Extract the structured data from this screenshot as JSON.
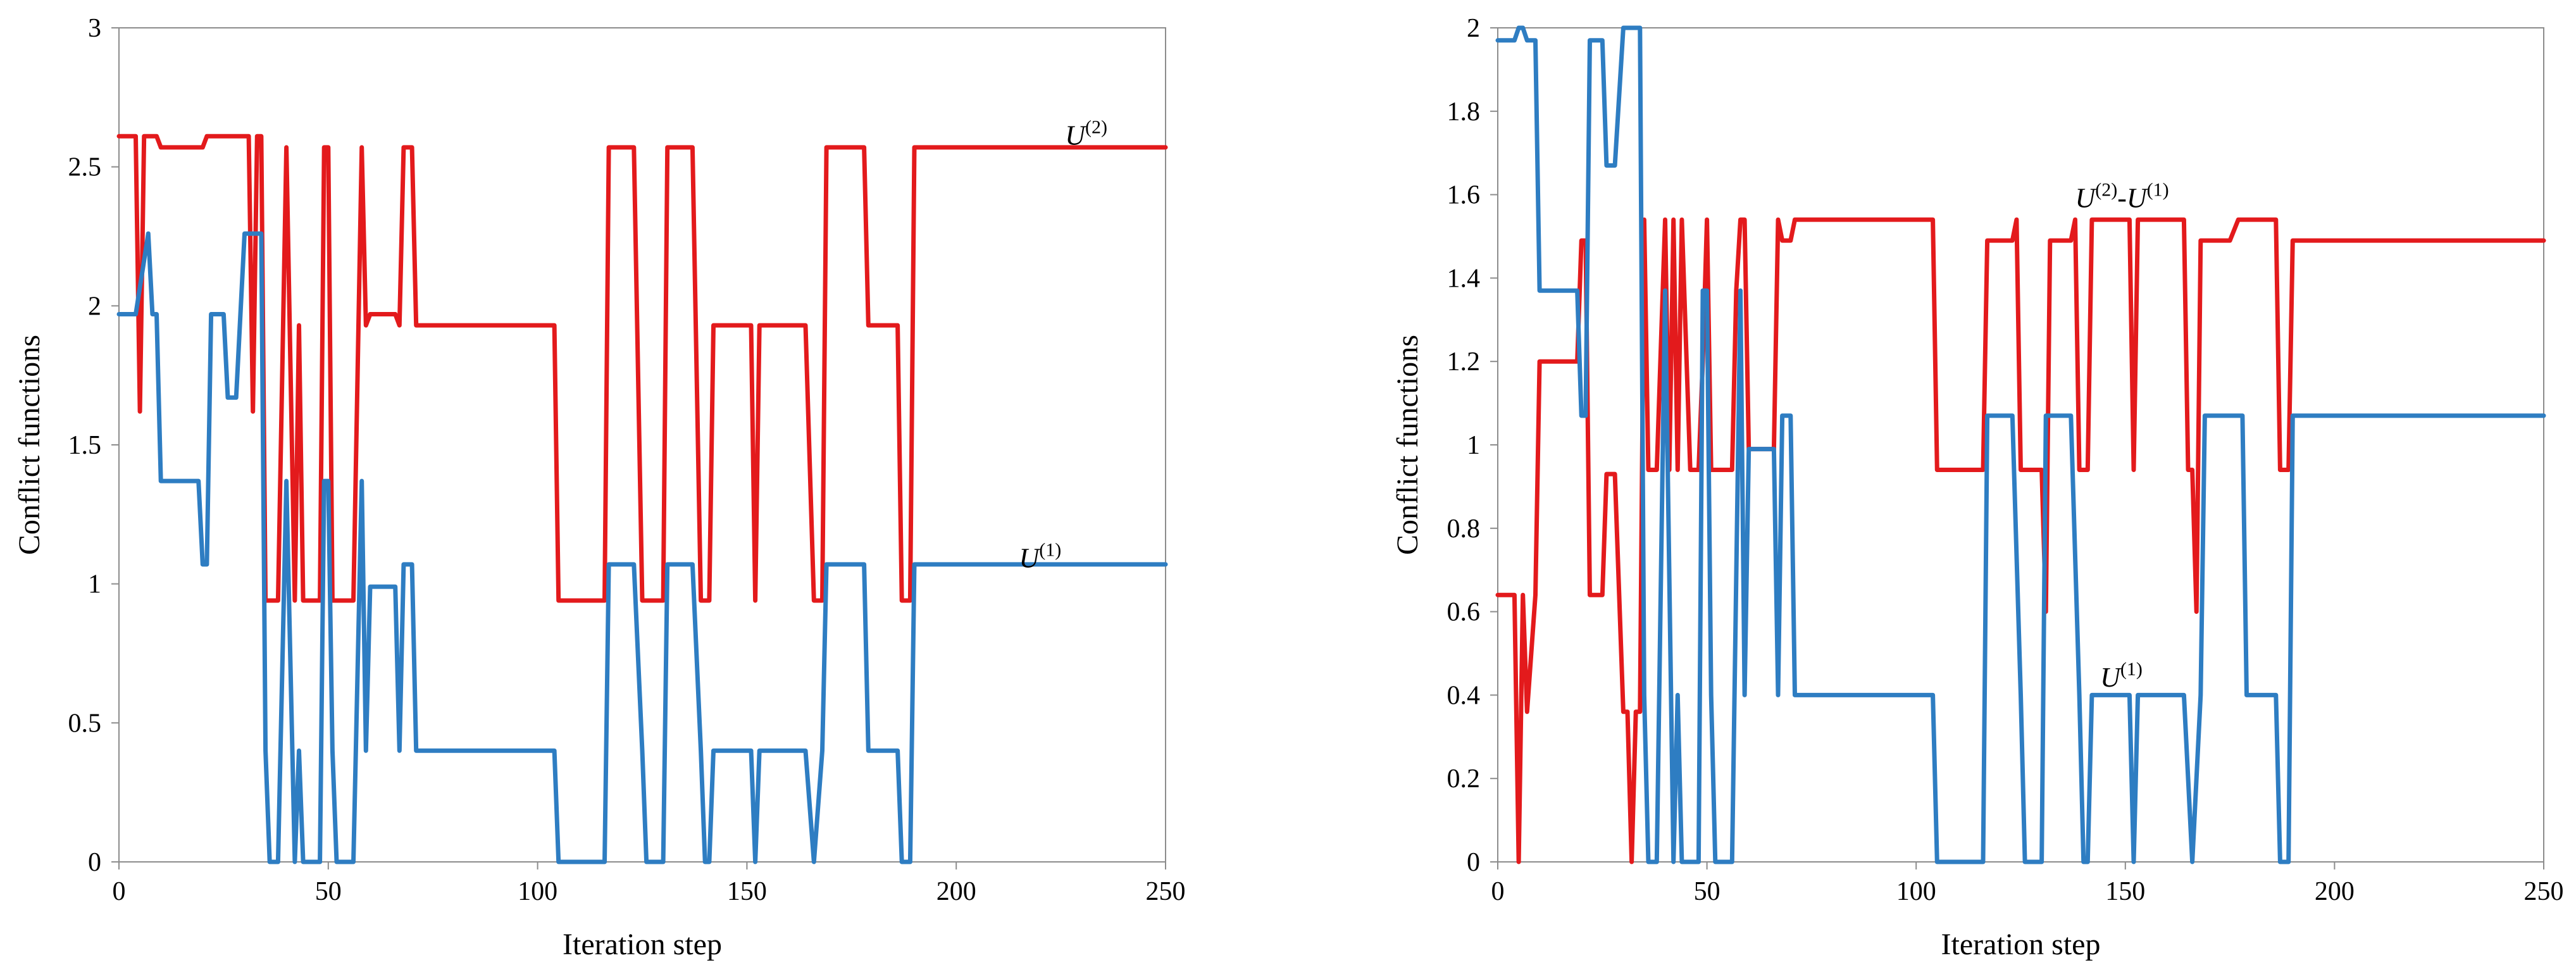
{
  "chart_data": [
    {
      "type": "line",
      "title": "",
      "xlabel": "Iteration step",
      "ylabel": "Conflict functions",
      "xlim": [
        0,
        250
      ],
      "ylim": [
        0,
        3
      ],
      "xticks": [
        0,
        50,
        100,
        150,
        200,
        250
      ],
      "xtick_labels": [
        "0",
        "50",
        "100",
        "150",
        "200",
        "250"
      ],
      "yticks": [
        0,
        0.5,
        1,
        1.5,
        2,
        2.5,
        3
      ],
      "ytick_labels": [
        "0",
        "0.5",
        "1",
        "1.5",
        "2",
        "2.5",
        "3"
      ],
      "grid": false,
      "annotations": [
        {
          "text": "U",
          "sup": "(2)",
          "x": 226,
          "y": 2.58
        },
        {
          "text": "U",
          "sup": "(1)",
          "x": 215,
          "y": 1.06
        }
      ],
      "series": [
        {
          "name": "U(2)",
          "color": "#e31a1c",
          "points": [
            [
              0,
              2.61
            ],
            [
              4,
              2.61
            ],
            [
              5,
              1.62
            ],
            [
              6,
              2.61
            ],
            [
              9,
              2.61
            ],
            [
              10,
              2.57
            ],
            [
              20,
              2.57
            ],
            [
              21,
              2.61
            ],
            [
              31,
              2.61
            ],
            [
              32,
              1.62
            ],
            [
              33,
              2.61
            ],
            [
              34,
              2.61
            ],
            [
              35,
              0.94
            ],
            [
              38,
              0.94
            ],
            [
              40,
              2.57
            ],
            [
              42,
              0.94
            ],
            [
              43,
              1.93
            ],
            [
              44,
              0.94
            ],
            [
              48,
              0.94
            ],
            [
              49,
              2.57
            ],
            [
              50,
              2.57
            ],
            [
              51,
              0.94
            ],
            [
              56,
              0.94
            ],
            [
              58,
              2.57
            ],
            [
              59,
              1.93
            ],
            [
              60,
              1.97
            ],
            [
              66,
              1.97
            ],
            [
              67,
              1.93
            ],
            [
              68,
              2.57
            ],
            [
              70,
              2.57
            ],
            [
              71,
              1.93
            ],
            [
              104,
              1.93
            ],
            [
              105,
              0.94
            ],
            [
              116,
              0.94
            ],
            [
              117,
              2.57
            ],
            [
              123,
              2.57
            ],
            [
              125,
              0.94
            ],
            [
              130,
              0.94
            ],
            [
              131,
              2.57
            ],
            [
              137,
              2.57
            ],
            [
              139,
              0.94
            ],
            [
              141,
              0.94
            ],
            [
              142,
              1.93
            ],
            [
              151,
              1.93
            ],
            [
              152,
              0.94
            ],
            [
              153,
              1.93
            ],
            [
              164,
              1.93
            ],
            [
              166,
              0.94
            ],
            [
              168,
              0.94
            ],
            [
              169,
              2.57
            ],
            [
              178,
              2.57
            ],
            [
              179,
              1.93
            ],
            [
              186,
              1.93
            ],
            [
              187,
              0.94
            ],
            [
              189,
              0.94
            ],
            [
              190,
              2.57
            ],
            [
              250,
              2.57
            ]
          ]
        },
        {
          "name": "U(1)",
          "color": "#2e7dc2",
          "points": [
            [
              0,
              1.97
            ],
            [
              4,
              1.97
            ],
            [
              7,
              2.26
            ],
            [
              8,
              1.97
            ],
            [
              9,
              1.97
            ],
            [
              10,
              1.37
            ],
            [
              19,
              1.37
            ],
            [
              20,
              1.07
            ],
            [
              21,
              1.07
            ],
            [
              22,
              1.97
            ],
            [
              25,
              1.97
            ],
            [
              26,
              1.67
            ],
            [
              28,
              1.67
            ],
            [
              30,
              2.26
            ],
            [
              34,
              2.26
            ],
            [
              35,
              0.4
            ],
            [
              36,
              0
            ],
            [
              38,
              0
            ],
            [
              40,
              1.37
            ],
            [
              42,
              0
            ],
            [
              43,
              0.4
            ],
            [
              44,
              0
            ],
            [
              48,
              0
            ],
            [
              49,
              1.37
            ],
            [
              50,
              1.37
            ],
            [
              51,
              0.4
            ],
            [
              52,
              0
            ],
            [
              56,
              0
            ],
            [
              58,
              1.37
            ],
            [
              59,
              0.4
            ],
            [
              60,
              0.99
            ],
            [
              66,
              0.99
            ],
            [
              67,
              0.4
            ],
            [
              68,
              1.07
            ],
            [
              70,
              1.07
            ],
            [
              71,
              0.4
            ],
            [
              104,
              0.4
            ],
            [
              105,
              0
            ],
            [
              116,
              0
            ],
            [
              117,
              1.07
            ],
            [
              123,
              1.07
            ],
            [
              125,
              0.4
            ],
            [
              126,
              0
            ],
            [
              130,
              0
            ],
            [
              131,
              1.07
            ],
            [
              137,
              1.07
            ],
            [
              139,
              0.4
            ],
            [
              140,
              0
            ],
            [
              141,
              0
            ],
            [
              142,
              0.4
            ],
            [
              151,
              0.4
            ],
            [
              152,
              0
            ],
            [
              153,
              0.4
            ],
            [
              164,
              0.4
            ],
            [
              166,
              0
            ],
            [
              168,
              0.4
            ],
            [
              169,
              1.07
            ],
            [
              178,
              1.07
            ],
            [
              179,
              0.4
            ],
            [
              186,
              0.4
            ],
            [
              187,
              0
            ],
            [
              189,
              0
            ],
            [
              190,
              1.07
            ],
            [
              250,
              1.07
            ]
          ]
        }
      ]
    },
    {
      "type": "line",
      "title": "",
      "xlabel": "Iteration step",
      "ylabel": "Conflict functions",
      "xlim": [
        0,
        250
      ],
      "ylim": [
        0,
        2
      ],
      "xticks": [
        0,
        50,
        100,
        150,
        200,
        250
      ],
      "xtick_labels": [
        "0",
        "50",
        "100",
        "150",
        "200",
        "250"
      ],
      "yticks": [
        0,
        0.2,
        0.4,
        0.6,
        0.8,
        1,
        1.2,
        1.4,
        1.6,
        1.8,
        2
      ],
      "ytick_labels": [
        "0",
        "0.2",
        "0.4",
        "0.6",
        "0.8",
        "1",
        "1.2",
        "1.4",
        "1.6",
        "1.8",
        "2"
      ],
      "grid": false,
      "annotations": [
        {
          "text": "U",
          "sup": "(2)",
          "text2": "-U",
          "sup2": "(1)",
          "x": 138,
          "y": 1.57
        },
        {
          "text": "U",
          "sup": "(1)",
          "x": 144,
          "y": 0.42
        }
      ],
      "series": [
        {
          "name": "U(2)-U(1)",
          "color": "#e31a1c",
          "points": [
            [
              0,
              0.64
            ],
            [
              4,
              0.64
            ],
            [
              5,
              0
            ],
            [
              6,
              0.64
            ],
            [
              7,
              0.36
            ],
            [
              9,
              0.64
            ],
            [
              10,
              1.2
            ],
            [
              19,
              1.2
            ],
            [
              20,
              1.49
            ],
            [
              21,
              1.49
            ],
            [
              22,
              0.64
            ],
            [
              25,
              0.64
            ],
            [
              26,
              0.93
            ],
            [
              28,
              0.93
            ],
            [
              30,
              0.36
            ],
            [
              31,
              0.36
            ],
            [
              32,
              0
            ],
            [
              33,
              0.36
            ],
            [
              34,
              0.36
            ],
            [
              35,
              1.54
            ],
            [
              36,
              0.94
            ],
            [
              38,
              0.94
            ],
            [
              40,
              1.54
            ],
            [
              41,
              0.94
            ],
            [
              42,
              1.54
            ],
            [
              43,
              0.94
            ],
            [
              44,
              1.54
            ],
            [
              46,
              0.94
            ],
            [
              48,
              0.94
            ],
            [
              49,
              1.2
            ],
            [
              50,
              1.54
            ],
            [
              51,
              0.94
            ],
            [
              56,
              0.94
            ],
            [
              57,
              1.37
            ],
            [
              58,
              1.54
            ],
            [
              59,
              1.54
            ],
            [
              60,
              0.99
            ],
            [
              66,
              0.99
            ],
            [
              67,
              1.54
            ],
            [
              68,
              1.49
            ],
            [
              70,
              1.49
            ],
            [
              71,
              1.54
            ],
            [
              104,
              1.54
            ],
            [
              105,
              0.94
            ],
            [
              116,
              0.94
            ],
            [
              117,
              1.49
            ],
            [
              123,
              1.49
            ],
            [
              124,
              1.54
            ],
            [
              125,
              0.94
            ],
            [
              130,
              0.94
            ],
            [
              131,
              0.6
            ],
            [
              132,
              1.49
            ],
            [
              137,
              1.49
            ],
            [
              138,
              1.54
            ],
            [
              139,
              0.94
            ],
            [
              141,
              0.94
            ],
            [
              142,
              1.54
            ],
            [
              151,
              1.54
            ],
            [
              152,
              0.94
            ],
            [
              153,
              1.54
            ],
            [
              164,
              1.54
            ],
            [
              165,
              0.94
            ],
            [
              166,
              0.94
            ],
            [
              167,
              0.6
            ],
            [
              168,
              1.49
            ],
            [
              175,
              1.49
            ],
            [
              177,
              1.54
            ],
            [
              186,
              1.54
            ],
            [
              187,
              0.94
            ],
            [
              189,
              0.94
            ],
            [
              190,
              1.49
            ],
            [
              250,
              1.49
            ]
          ]
        },
        {
          "name": "U(1)",
          "color": "#2e7dc2",
          "points": [
            [
              0,
              1.97
            ],
            [
              4,
              1.97
            ],
            [
              5,
              2
            ],
            [
              6,
              2
            ],
            [
              7,
              1.97
            ],
            [
              9,
              1.97
            ],
            [
              10,
              1.37
            ],
            [
              19,
              1.37
            ],
            [
              20,
              1.07
            ],
            [
              21,
              1.07
            ],
            [
              22,
              1.97
            ],
            [
              25,
              1.97
            ],
            [
              26,
              1.67
            ],
            [
              28,
              1.67
            ],
            [
              30,
              2
            ],
            [
              33,
              2
            ],
            [
              34,
              2
            ],
            [
              35,
              0.4
            ],
            [
              36,
              0
            ],
            [
              38,
              0
            ],
            [
              40,
              1.37
            ],
            [
              42,
              0
            ],
            [
              43,
              0.4
            ],
            [
              44,
              0
            ],
            [
              48,
              0
            ],
            [
              49,
              1.37
            ],
            [
              50,
              1.37
            ],
            [
              51,
              0.4
            ],
            [
              52,
              0
            ],
            [
              56,
              0
            ],
            [
              58,
              1.37
            ],
            [
              59,
              0.4
            ],
            [
              60,
              0.99
            ],
            [
              66,
              0.99
            ],
            [
              67,
              0.4
            ],
            [
              68,
              1.07
            ],
            [
              70,
              1.07
            ],
            [
              71,
              0.4
            ],
            [
              104,
              0.4
            ],
            [
              105,
              0
            ],
            [
              116,
              0
            ],
            [
              117,
              1.07
            ],
            [
              123,
              1.07
            ],
            [
              125,
              0.4
            ],
            [
              126,
              0
            ],
            [
              130,
              0
            ],
            [
              131,
              1.07
            ],
            [
              137,
              1.07
            ],
            [
              139,
              0.4
            ],
            [
              140,
              0
            ],
            [
              141,
              0
            ],
            [
              142,
              0.4
            ],
            [
              151,
              0.4
            ],
            [
              152,
              0
            ],
            [
              153,
              0.4
            ],
            [
              164,
              0.4
            ],
            [
              166,
              0
            ],
            [
              168,
              0.4
            ],
            [
              169,
              1.07
            ],
            [
              178,
              1.07
            ],
            [
              179,
              0.4
            ],
            [
              186,
              0.4
            ],
            [
              187,
              0
            ],
            [
              189,
              0
            ],
            [
              190,
              1.07
            ],
            [
              250,
              1.07
            ]
          ]
        }
      ]
    }
  ]
}
